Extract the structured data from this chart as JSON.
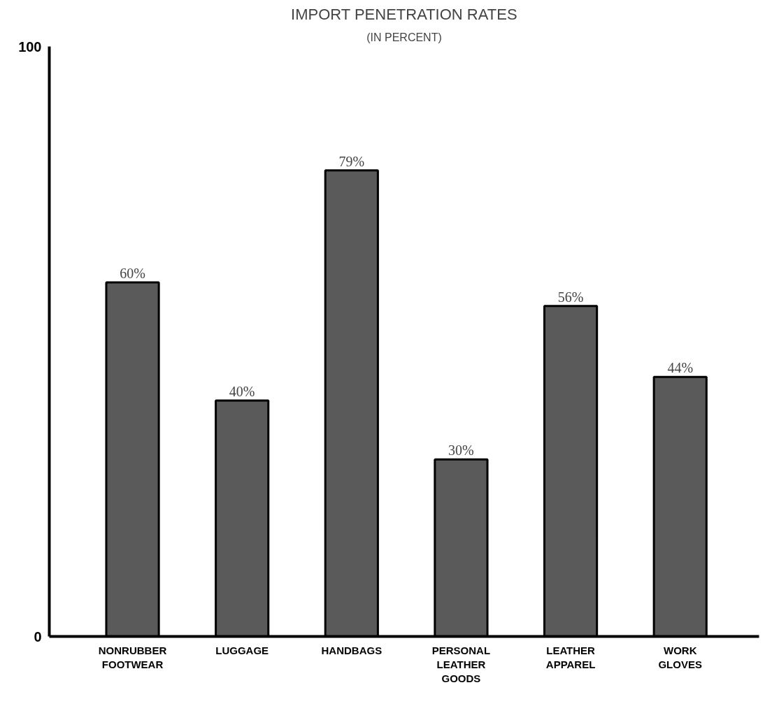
{
  "chart_data": {
    "type": "bar",
    "title": "IMPORT PENETRATION RATES",
    "subtitle": "(IN PERCENT)",
    "categories": [
      "NONRUBBER\nFOOTWEAR",
      "LUGGAGE",
      "HANDBAGS",
      "PERSONAL\nLEATHER\nGOODS",
      "LEATHER\nAPPAREL",
      "WORK\nGLOVES"
    ],
    "values": [
      60,
      40,
      79,
      30,
      56,
      44
    ],
    "value_labels": [
      "60%",
      "40%",
      "79%",
      "30%",
      "56%",
      "44%"
    ],
    "color": "#5a5a5a",
    "ylim": [
      0,
      100
    ],
    "yticks": [
      0,
      100
    ],
    "grid": false
  }
}
